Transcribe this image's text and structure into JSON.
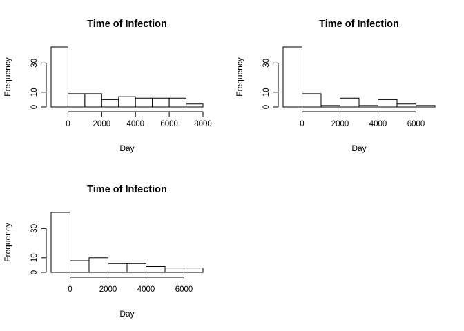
{
  "chart_data": [
    {
      "type": "bar",
      "title": "Time of Infection",
      "xlabel": "Day",
      "ylabel": "Frequency",
      "bin_edges": [
        -1000,
        0,
        1000,
        2000,
        3000,
        4000,
        5000,
        6000,
        7000,
        8000
      ],
      "values": [
        41,
        9,
        9,
        5,
        7,
        6,
        6,
        6,
        2
      ],
      "xlim": [
        -1000,
        8000
      ],
      "ylim": [
        0,
        41
      ],
      "x_ticks": [
        0,
        2000,
        4000,
        6000,
        8000
      ],
      "x_tick_labels": [
        "0",
        "2000",
        "4000",
        "6000",
        "8000"
      ],
      "y_ticks": [
        0,
        10,
        30
      ],
      "y_tick_labels": [
        "0",
        "10",
        "30"
      ]
    },
    {
      "type": "bar",
      "title": "Time of Infection",
      "xlabel": "Day",
      "ylabel": "Frequency",
      "bin_edges": [
        -1000,
        0,
        1000,
        2000,
        3000,
        4000,
        5000,
        6000,
        7000
      ],
      "values": [
        41,
        9,
        1,
        6,
        1,
        5,
        2,
        1
      ],
      "xlim": [
        -1000,
        7000
      ],
      "ylim": [
        0,
        41
      ],
      "x_ticks": [
        0,
        2000,
        4000,
        6000
      ],
      "x_tick_labels": [
        "0",
        "2000",
        "4000",
        "6000"
      ],
      "y_ticks": [
        0,
        10,
        30
      ],
      "y_tick_labels": [
        "0",
        "10",
        "30"
      ]
    },
    {
      "type": "bar",
      "title": "Time of Infection",
      "xlabel": "Day",
      "ylabel": "Frequency",
      "bin_edges": [
        -1000,
        0,
        1000,
        2000,
        3000,
        4000,
        5000,
        6000,
        7000
      ],
      "values": [
        41,
        8,
        10,
        6,
        6,
        4,
        3,
        3
      ],
      "xlim": [
        -1000,
        7000
      ],
      "ylim": [
        0,
        41
      ],
      "x_ticks": [
        0,
        2000,
        4000,
        6000
      ],
      "x_tick_labels": [
        "0",
        "2000",
        "4000",
        "6000"
      ],
      "y_ticks": [
        0,
        10,
        30
      ],
      "y_tick_labels": [
        "0",
        "10",
        "30"
      ]
    }
  ]
}
